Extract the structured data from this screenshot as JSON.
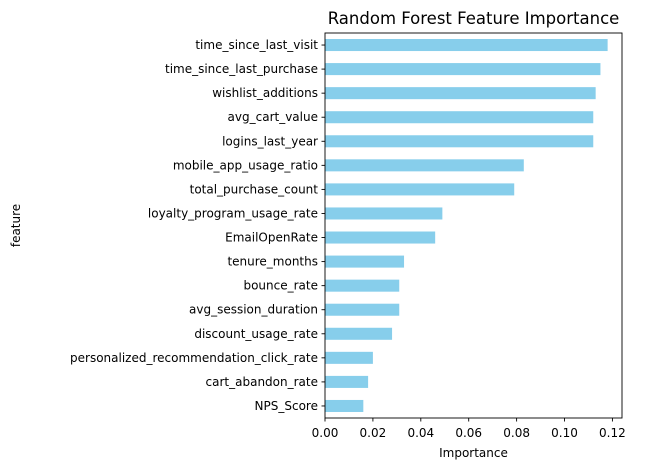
{
  "chart_data": {
    "type": "bar",
    "orientation": "horizontal",
    "title": "Random Forest Feature Importance",
    "xlabel": "Importance",
    "ylabel": "feature",
    "categories": [
      "time_since_last_visit",
      "time_since_last_purchase",
      "wishlist_additions",
      "avg_cart_value",
      "logins_last_year",
      "mobile_app_usage_ratio",
      "total_purchase_count",
      "loyalty_program_usage_rate",
      "EmailOpenRate",
      "tenure_months",
      "bounce_rate",
      "avg_session_duration",
      "discount_usage_rate",
      "personalized_recommendation_click_rate",
      "cart_abandon_rate",
      "NPS_Score"
    ],
    "values": [
      0.118,
      0.115,
      0.113,
      0.112,
      0.112,
      0.083,
      0.079,
      0.049,
      0.046,
      0.033,
      0.031,
      0.031,
      0.028,
      0.02,
      0.018,
      0.016
    ],
    "xlim": [
      0,
      0.124
    ],
    "xticks": [
      "0.00",
      "0.02",
      "0.04",
      "0.06",
      "0.08",
      "0.10",
      "0.12"
    ],
    "xtick_values": [
      0,
      0.02,
      0.04,
      0.06,
      0.08,
      0.1,
      0.12
    ],
    "bar_color": "#87CEEB",
    "grid": false,
    "legend": "none"
  }
}
